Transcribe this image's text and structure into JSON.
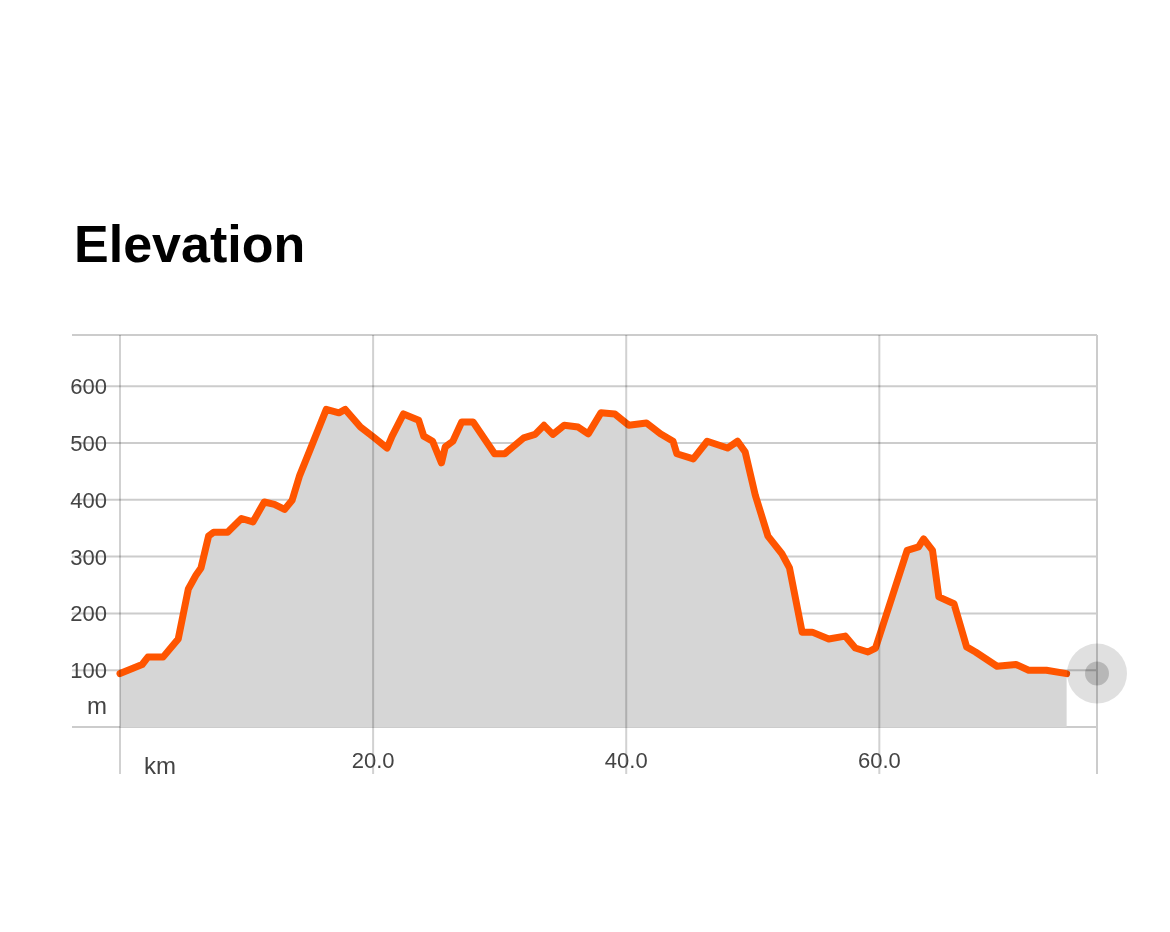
{
  "chart_data": {
    "type": "area",
    "title": "Elevation",
    "xlabel": "km",
    "ylabel": "m",
    "x": [
      0,
      1.75,
      2.2,
      3.4,
      4.6,
      5.4,
      6.0,
      6.4,
      7.0,
      7.4,
      8.5,
      9.6,
      10.5,
      11.4,
      12.2,
      13.0,
      13.6,
      14.2,
      15.0,
      16.3,
      17.3,
      17.8,
      19.0,
      20.1,
      21.1,
      21.5,
      22.4,
      23.6,
      24.0,
      24.7,
      25.4,
      25.7,
      26.3,
      27.0,
      27.9,
      29.6,
      30.4,
      31.9,
      32.8,
      33.5,
      34.2,
      35.1,
      36.2,
      37.0,
      38.0,
      39.1,
      40.2,
      41.6,
      42.7,
      43.7,
      44.0,
      45.3,
      46.4,
      48.0,
      48.8,
      49.4,
      50.2,
      51.2,
      52.3,
      52.9,
      53.9,
      54.7,
      56.0,
      57.3,
      58.1,
      59.1,
      59.7,
      62.2,
      63.1,
      63.5,
      64.2,
      64.7,
      65.9,
      66.9,
      67.6,
      69.3,
      70.8,
      71.8,
      73.2,
      74.8
    ],
    "series": [
      {
        "color": "#ff5500",
        "values": [
          94,
          110,
          123,
          123,
          155,
          243,
          267,
          280,
          336,
          343,
          343,
          367,
          361,
          396,
          392,
          383,
          399,
          443,
          487,
          559,
          553,
          559,
          528,
          509,
          491,
          512,
          551,
          540,
          512,
          503,
          465,
          493,
          503,
          537,
          537,
          481,
          481,
          509,
          515,
          531,
          515,
          531,
          528,
          516,
          553,
          551,
          531,
          535,
          516,
          503,
          481,
          472,
          503,
          491,
          503,
          484,
          408,
          336,
          305,
          280,
          167,
          167,
          155,
          160,
          139,
          132,
          139,
          311,
          317,
          331,
          311,
          229,
          217,
          141,
          132,
          107,
          110,
          100,
          100,
          94
        ]
      }
    ],
    "xlim": [
      0,
      77.2
    ],
    "ylim": [
      0,
      690
    ],
    "xticks": [
      {
        "value": 0,
        "label": null
      },
      {
        "value": 20,
        "label": "20.0"
      },
      {
        "value": 40,
        "label": "40.0"
      },
      {
        "value": 60,
        "label": "60.0"
      }
    ],
    "yticks": [
      100,
      200,
      300,
      400,
      500,
      600
    ],
    "grid": true
  }
}
